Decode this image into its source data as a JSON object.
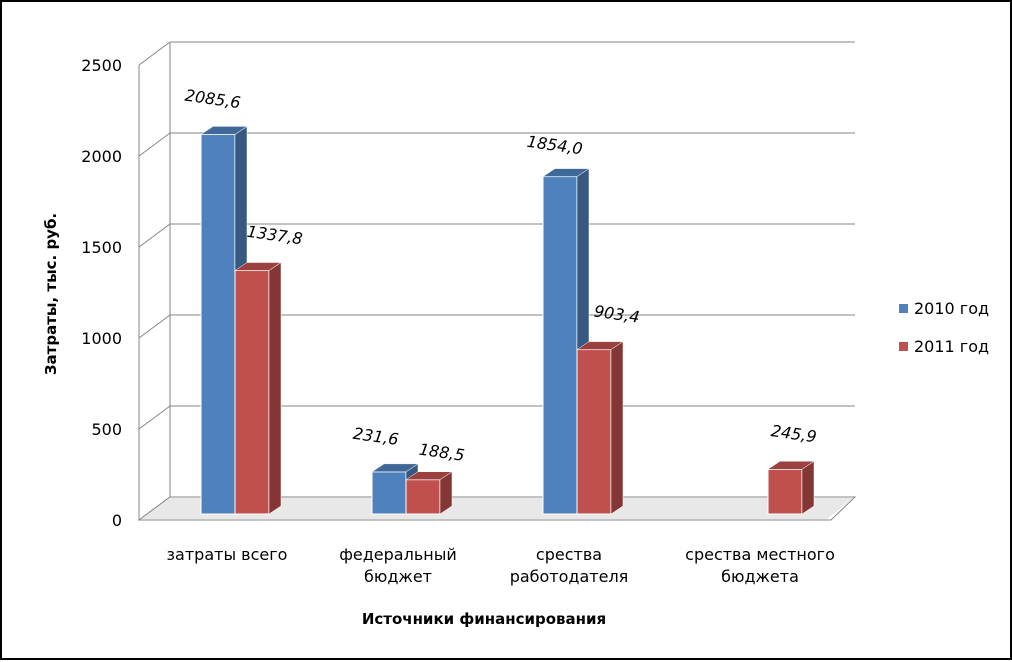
{
  "chart_data": {
    "type": "bar",
    "style": "3d-clustered-column",
    "title": "",
    "xlabel": "Источники финансирования",
    "ylabel": "Затраты, тыс. руб.",
    "ylim": [
      0,
      2500
    ],
    "yticks": [
      0,
      500,
      1000,
      1500,
      2000,
      2500
    ],
    "grid": true,
    "legend_position": "right",
    "categories": [
      [
        "затраты всего"
      ],
      [
        "федеральный",
        "бюджет"
      ],
      [
        "срества",
        "работодателя"
      ],
      [
        "срества местного",
        "бюджета"
      ]
    ],
    "series": [
      {
        "name": "2010 год",
        "color": "#4F81BD",
        "values": [
          2085.6,
          231.6,
          1854.0,
          null
        ],
        "labels": [
          "2085,6",
          "231,6",
          "1854,0",
          ""
        ]
      },
      {
        "name": "2011 год",
        "color": "#C0504D",
        "values": [
          1337.8,
          188.5,
          903.4,
          245.9
        ],
        "labels": [
          "1337,8",
          "188,5",
          "903,4",
          "245,9"
        ]
      }
    ]
  }
}
